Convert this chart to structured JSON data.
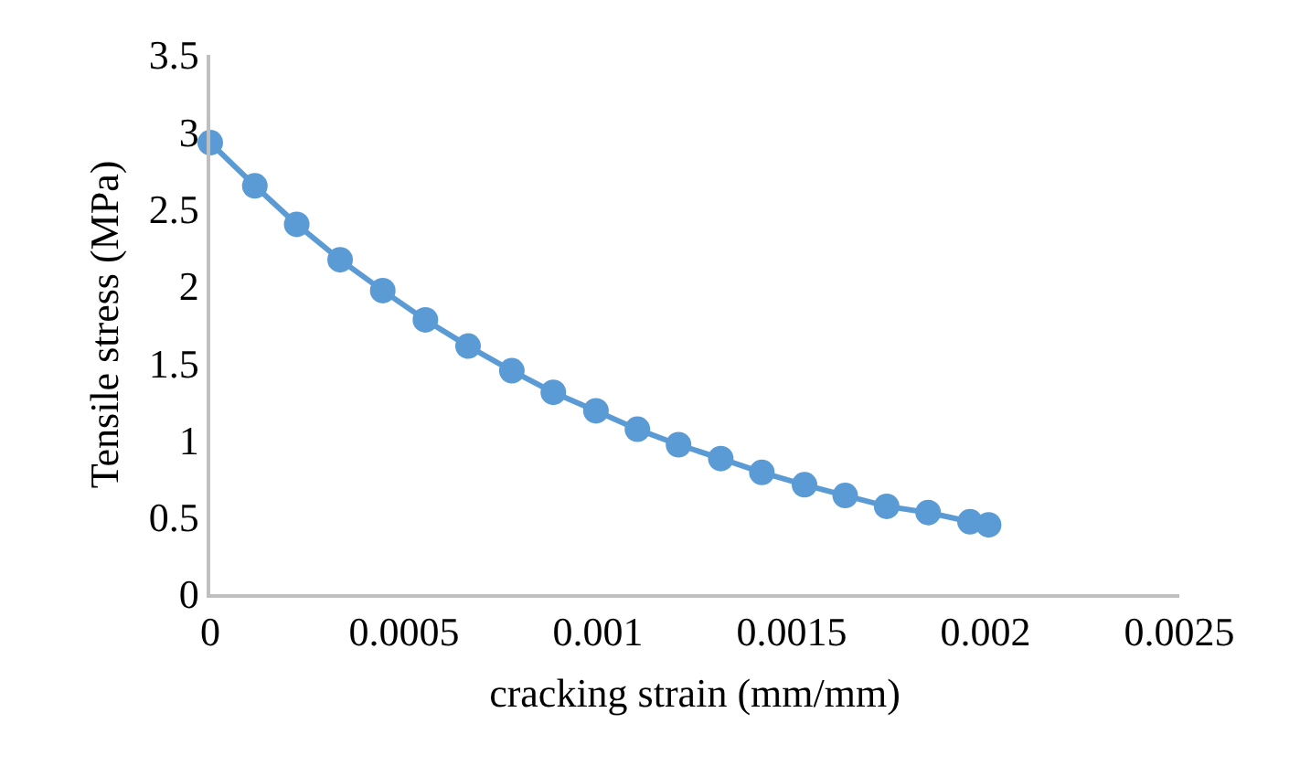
{
  "chart_data": {
    "type": "line",
    "xlabel": "cracking strain (mm/mm)",
    "ylabel": "Tensile stress (MPa)",
    "series": [
      {
        "color": "#5b9bd5",
        "marker": "circle",
        "x": [
          0,
          0.000115,
          0.000223,
          0.000335,
          0.000445,
          0.000555,
          0.000665,
          0.000778,
          0.000885,
          0.000995,
          0.001102,
          0.001208,
          0.001317,
          0.001423,
          0.001533,
          0.001638,
          0.001745,
          0.001852,
          0.00196,
          0.002008
        ],
        "values": [
          2.93,
          2.65,
          2.4,
          2.17,
          1.97,
          1.78,
          1.61,
          1.45,
          1.31,
          1.19,
          1.07,
          0.97,
          0.88,
          0.79,
          0.71,
          0.64,
          0.57,
          0.53,
          0.47,
          0.45
        ]
      }
    ],
    "xlim": [
      0,
      0.0025
    ],
    "xticks": [
      0,
      0.0005,
      0.001,
      0.0015,
      0.002,
      0.0025
    ],
    "ylim": [
      0,
      3.5
    ],
    "yticks": [
      0,
      0.5,
      1,
      1.5,
      2,
      2.5,
      3,
      3.5
    ],
    "grid": false
  }
}
